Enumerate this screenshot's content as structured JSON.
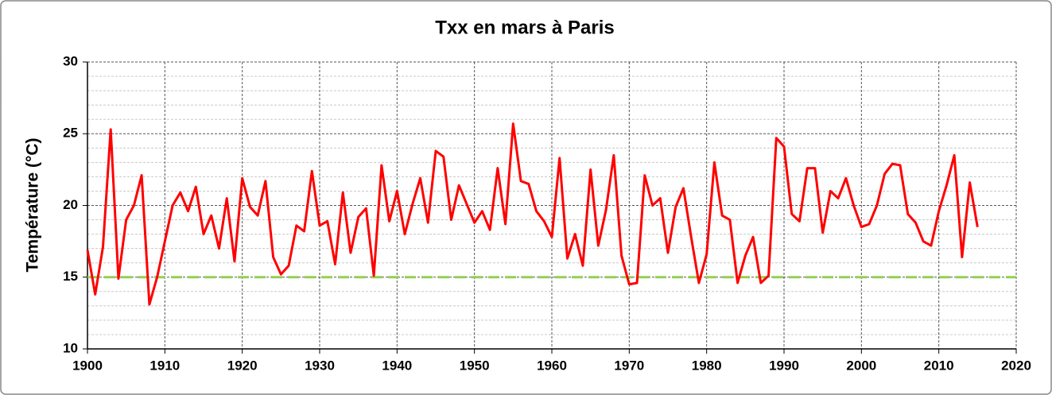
{
  "chart_data": {
    "type": "line",
    "title": "Txx en mars à Paris",
    "y_label": "Température (°C)",
    "x": [
      1900,
      1901,
      1902,
      1903,
      1904,
      1905,
      1906,
      1907,
      1908,
      1909,
      1910,
      1911,
      1912,
      1913,
      1914,
      1915,
      1916,
      1917,
      1918,
      1919,
      1920,
      1921,
      1922,
      1923,
      1924,
      1925,
      1926,
      1927,
      1928,
      1929,
      1930,
      1931,
      1932,
      1933,
      1934,
      1935,
      1936,
      1937,
      1938,
      1939,
      1940,
      1941,
      1942,
      1943,
      1944,
      1945,
      1946,
      1947,
      1948,
      1949,
      1950,
      1951,
      1952,
      1953,
      1954,
      1955,
      1956,
      1957,
      1958,
      1959,
      1960,
      1961,
      1962,
      1963,
      1964,
      1965,
      1966,
      1967,
      1968,
      1969,
      1970,
      1971,
      1972,
      1973,
      1974,
      1975,
      1976,
      1977,
      1978,
      1979,
      1980,
      1981,
      1982,
      1983,
      1984,
      1985,
      1986,
      1987,
      1988,
      1989,
      1990,
      1991,
      1992,
      1993,
      1994,
      1995,
      1996,
      1997,
      1998,
      1999,
      2000,
      2001,
      2002,
      2003,
      2004,
      2005,
      2006,
      2007,
      2008,
      2009,
      2010,
      2011,
      2012,
      2013,
      2014,
      2015
    ],
    "series": [
      {
        "color": "#ff0000",
        "values": [
          16.9,
          13.8,
          17.1,
          25.3,
          14.9,
          19.0,
          20.0,
          22.1,
          13.1,
          15.0,
          17.5,
          20.0,
          20.9,
          19.6,
          21.3,
          18.0,
          19.3,
          17.0,
          20.5,
          16.1,
          21.9,
          19.9,
          19.3,
          21.7,
          16.4,
          15.2,
          15.8,
          18.6,
          18.2,
          22.4,
          18.6,
          18.9,
          15.9,
          20.9,
          16.7,
          19.2,
          19.8,
          15.1,
          22.8,
          18.9,
          21.0,
          18.0,
          20.1,
          21.9,
          18.8,
          23.8,
          23.4,
          19.0,
          21.4,
          20.1,
          18.8,
          19.6,
          18.3,
          22.6,
          18.7,
          25.7,
          21.7,
          21.5,
          19.6,
          18.9,
          17.8,
          23.3,
          16.3,
          18.0,
          15.8,
          22.5,
          17.2,
          19.7,
          23.5,
          16.5,
          14.5,
          14.6,
          22.1,
          20.0,
          20.5,
          16.7,
          19.9,
          21.2,
          17.8,
          14.6,
          16.6,
          23.0,
          19.3,
          19.0,
          14.6,
          16.5,
          17.8,
          14.6,
          15.1,
          24.7,
          24.1,
          19.4,
          18.9,
          22.6,
          22.6,
          18.1,
          21.0,
          20.5,
          21.9,
          20.0,
          18.5,
          18.7,
          20.0,
          22.2,
          22.9,
          22.8,
          19.4,
          18.8,
          17.5,
          17.2,
          19.6,
          21.4,
          23.5,
          16.4,
          21.6,
          18.5
        ]
      }
    ],
    "reference_line": {
      "value": 15,
      "color": "#92d050"
    },
    "xlim": [
      1900,
      2020
    ],
    "xticks": [
      1900,
      1910,
      1920,
      1930,
      1940,
      1950,
      1960,
      1970,
      1980,
      1990,
      2000,
      2010,
      2020
    ],
    "ylim": [
      10,
      30
    ],
    "yticks": [
      10,
      15,
      20,
      25,
      30
    ],
    "minor_yticks": [
      11,
      12,
      13,
      14,
      16,
      17,
      18,
      19,
      21,
      22,
      23,
      24,
      26,
      27,
      28,
      29
    ],
    "grid": true
  }
}
